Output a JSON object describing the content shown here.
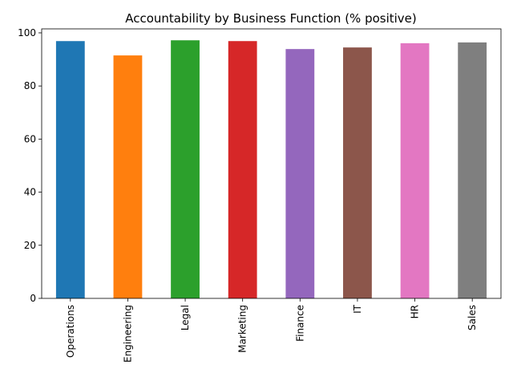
{
  "chart_data": {
    "type": "bar",
    "title": "Accountability by Business Function (% positive)",
    "xlabel": "",
    "ylabel": "",
    "categories": [
      "Operations",
      "Engineering",
      "Legal",
      "Marketing",
      "Finance",
      "IT",
      "HR",
      "Sales"
    ],
    "values": [
      96.9,
      91.5,
      97.2,
      96.9,
      93.9,
      94.5,
      96.1,
      96.4
    ],
    "colors": [
      "#1f77b4",
      "#ff7f0e",
      "#2ca02c",
      "#d62728",
      "#9467bd",
      "#8c564b",
      "#e377c2",
      "#7f7f7f"
    ],
    "ylim": [
      0,
      101.5
    ],
    "yticks": [
      0,
      20,
      40,
      60,
      80,
      100
    ],
    "grid": false,
    "legend": "none"
  }
}
